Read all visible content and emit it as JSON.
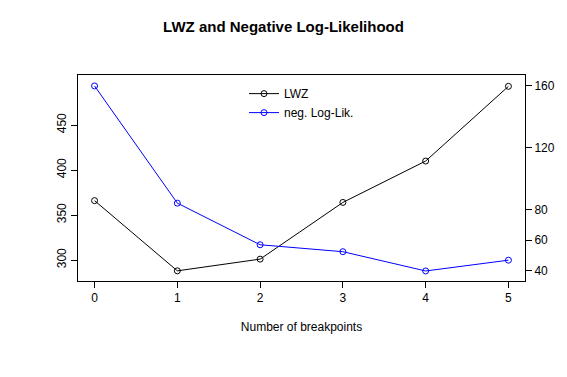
{
  "chart_data": {
    "type": "line",
    "title": "LWZ and Negative Log-Likelihood",
    "x_label": "Number of breakpoints",
    "x": [
      0,
      1,
      2,
      3,
      4,
      5
    ],
    "xlim": [
      -0.2,
      5.2
    ],
    "xticks": [
      0,
      1,
      2,
      3,
      4,
      5
    ],
    "ylim": [
      276.7,
      505.6
    ],
    "yticks": [
      300,
      350,
      400,
      450
    ],
    "y2lim": [
      33.5,
      167.1
    ],
    "y2ticks": [
      40,
      60,
      80,
      120,
      160
    ],
    "grid": false,
    "legend": "top",
    "series": [
      {
        "name": "LWZ",
        "color": "#000000",
        "marker": "open-circle",
        "line_style": "solid",
        "values": [
          366,
          288,
          301,
          364,
          410,
          493
        ]
      },
      {
        "name": "neg. Log-Lik.",
        "color": "#0000ff",
        "marker": "open-circle",
        "line_style": "solid",
        "axis": "y2",
        "values": [
          160,
          84,
          57,
          52.5,
          40,
          47
        ]
      }
    ]
  }
}
